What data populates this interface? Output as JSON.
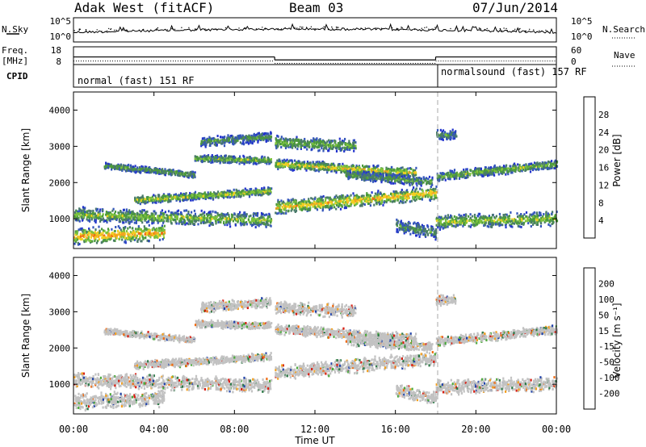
{
  "header": {
    "radar": "Adak West (fitACF)",
    "beam": "Beam 03",
    "date": "07/Jun/2014"
  },
  "side_labels": {
    "nsky": "N.Sky",
    "nsearch": "N.Search",
    "freq": "Freq.",
    "mhz": "[MHz]",
    "nave": "Nave",
    "cpid": "CPID"
  },
  "cpid_segments": [
    "normal (fast) 151 RF",
    "normalsound (fast) 157 RF"
  ],
  "colors": {
    "power": [
      "#2233cc",
      "#3355bb",
      "#4a7a6a",
      "#4c9a3c",
      "#7cc33c",
      "#f2d020",
      "#f3a020",
      "#ee6a18",
      "#e03010"
    ],
    "velocity": [
      "#d81c10",
      "#f06a10",
      "#f3a020",
      "#c2c2c2",
      "#4caa3c",
      "#2d7a48",
      "#2244aa"
    ]
  },
  "chart_data": [
    {
      "type": "line",
      "panel": "noise",
      "ylabel_left": "N.Sky",
      "ylabel_right": "N.Search",
      "yticks_left": [
        "10^5",
        "10^0"
      ],
      "yticks_right": [
        "10^5",
        "10^0"
      ],
      "xlim": [
        "00:00",
        "00:00"
      ]
    },
    {
      "type": "line",
      "panel": "frequency",
      "ylabel_left": "Freq. [MHz]",
      "ylabel_right": "Nave",
      "yticks_left": [
        18,
        8
      ],
      "yticks_right": [
        60,
        0
      ],
      "series_freq": [
        {
          "from": "00:00",
          "to": "10:00",
          "value": 12.3
        },
        {
          "from": "10:00",
          "to": "18:00",
          "value": 10.6
        },
        {
          "from": "18:00",
          "to": "24:00",
          "value": 12.3
        }
      ],
      "series_nave": [
        {
          "from": "00:00",
          "to": "10:00",
          "value": 12
        },
        {
          "from": "10:00",
          "to": "18:00",
          "value": 4
        },
        {
          "from": "18:00",
          "to": "24:00",
          "value": 12
        }
      ]
    },
    {
      "type": "heatmap",
      "panel": "power",
      "ylabel": "Slant Range [km]",
      "ylim": [
        180,
        4500
      ],
      "yticks": [
        1000,
        2000,
        3000,
        4000
      ],
      "xticks": [
        "00:00",
        "04:00",
        "08:00",
        "12:00",
        "16:00",
        "20:00",
        "00:00"
      ],
      "colorbar": {
        "label": "Power [dB]",
        "ticks": [
          4,
          8,
          12,
          16,
          20,
          24,
          28
        ],
        "range": [
          0,
          32
        ]
      }
    },
    {
      "type": "heatmap",
      "panel": "velocity",
      "ylabel": "Slant Range [km]",
      "xlabel": "Time UT",
      "ylim": [
        180,
        4500
      ],
      "yticks": [
        1000,
        2000,
        3000,
        4000
      ],
      "xticks": [
        "00:00",
        "04:00",
        "08:00",
        "12:00",
        "16:00",
        "20:00",
        "00:00"
      ],
      "colorbar": {
        "label": "Velocity [m s⁻¹]",
        "ticks": [
          200,
          100,
          50,
          15,
          -15,
          -50,
          -100,
          -200
        ]
      }
    }
  ]
}
